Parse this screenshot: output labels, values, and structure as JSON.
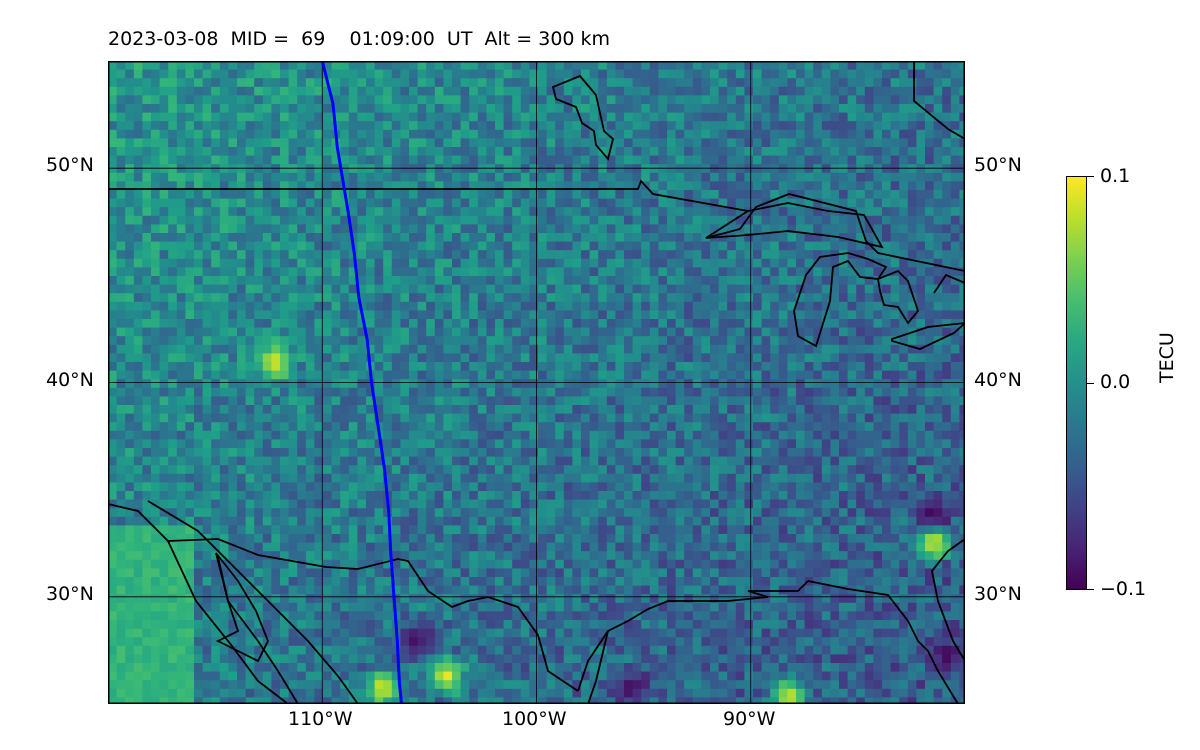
{
  "title": "2023-03-08  MID =  69    01:09:00  UT  Alt = 300 km",
  "axes": {
    "lat_ticks": [
      "50°N",
      "40°N",
      "30°N"
    ],
    "lon_ticks": [
      "110°W",
      "100°W",
      "90°W"
    ]
  },
  "colorbar": {
    "label": "TECU",
    "ticks": [
      "0.1",
      "0.0",
      "−0.1"
    ],
    "colormap": "viridis",
    "range": [
      -0.1,
      0.1
    ]
  },
  "map": {
    "projection": "PlateCarree",
    "lon_range": [
      -120,
      -80
    ],
    "lat_range": [
      25,
      55
    ],
    "gridlines": true,
    "grid_lons": [
      -110,
      -100,
      -90
    ],
    "grid_lats": [
      30,
      40,
      50
    ],
    "track_color": "#0000ff",
    "track": [
      [
        -110.0,
        55.0
      ],
      [
        -109.5,
        53.0
      ],
      [
        -109.3,
        51.0
      ],
      [
        -108.8,
        48.0
      ],
      [
        -108.5,
        46.0
      ],
      [
        -108.3,
        44.0
      ],
      [
        -107.9,
        42.0
      ],
      [
        -107.7,
        40.0
      ],
      [
        -107.4,
        38.0
      ],
      [
        -107.1,
        36.0
      ],
      [
        -106.9,
        34.0
      ],
      [
        -106.8,
        32.0
      ],
      [
        -106.5,
        28.0
      ],
      [
        -106.4,
        26.0
      ],
      [
        -106.3,
        25.0
      ]
    ],
    "coast_color": "#000000"
  },
  "chart_data": {
    "type": "heatmap",
    "title": "2023-03-08  MID =  69    01:09:00  UT  Alt = 300 km",
    "colorbar_label": "TECU",
    "value_range": [
      -0.1,
      0.1
    ],
    "x_ticks": [
      "110°W",
      "100°W",
      "90°W"
    ],
    "y_ticks": [
      "50°N",
      "40°N",
      "30°N"
    ],
    "hotspots": [
      {
        "lon": -107.2,
        "lat": 25.7,
        "value": 0.1
      },
      {
        "lon": -88.2,
        "lat": 25.3,
        "value": 0.1
      },
      {
        "lon": -112.2,
        "lat": 41.0,
        "value": 0.1
      },
      {
        "lon": -104.2,
        "lat": 26.3,
        "value": 0.1
      },
      {
        "lon": -81.5,
        "lat": 32.5,
        "value": 0.1
      },
      {
        "lon": -105.6,
        "lat": 28.0,
        "value": -0.1
      },
      {
        "lon": -95.5,
        "lat": 25.8,
        "value": -0.1
      },
      {
        "lon": -80.8,
        "lat": 27.2,
        "value": -0.1
      },
      {
        "lon": -81.5,
        "lat": 34.0,
        "value": -0.1
      }
    ]
  }
}
